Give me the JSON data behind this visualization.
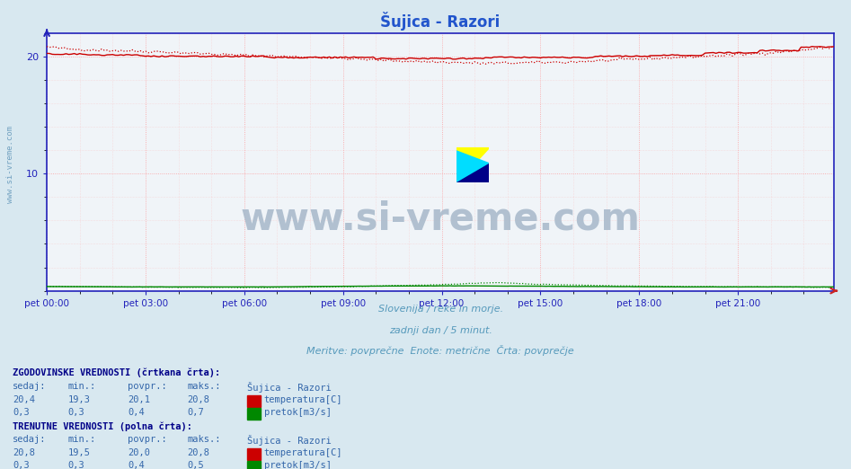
{
  "title": "Šujica - Razori",
  "title_color": "#2255cc",
  "title_fontsize": 12,
  "bg_outer": "#d8e8f0",
  "bg_plot": "#f0f4f8",
  "grid_color": "#ffaaaa",
  "grid_major_color": "#ff8888",
  "axis_color": "#2222bb",
  "ylabel_text": "www.si-vreme.com",
  "ylabel_color": "#6699bb",
  "xticklabels": [
    "pet 00:00",
    "pet 03:00",
    "pet 06:00",
    "pet 09:00",
    "pet 12:00",
    "pet 15:00",
    "pet 18:00",
    "pet 21:00"
  ],
  "xtick_positions": [
    0,
    36,
    72,
    108,
    144,
    180,
    216,
    252
  ],
  "n_points": 288,
  "ylim": [
    0,
    22
  ],
  "yticks": [
    10,
    20
  ],
  "xlabel_lines": [
    "Slovenija / reke in morje.",
    "zadnji dan / 5 minut.",
    "Meritve: povprečne  Enote: metrične  Črta: povprečje"
  ],
  "xlabel_color": "#5599bb",
  "temp_hist_color": "#cc0000",
  "temp_curr_color": "#cc0000",
  "flow_hist_color": "#008800",
  "flow_curr_color": "#008800",
  "watermark_text": "www.si-vreme.com",
  "watermark_color": "#aabbcc",
  "table_header_color": "#000088",
  "table_value_color": "#3366aa",
  "table_label_color": "#3366aa",
  "logo_colors": [
    "#ffff00",
    "#00eeff",
    "#0000aa"
  ],
  "hist_section_title": "ZGODOVINSKE VREDNOSTI (črtkana črta):",
  "curr_section_title": "TRENUTNE VREDNOSTI (polna črta):",
  "col_headers": [
    "sedaj:",
    "min.:",
    "povpr.:",
    "maks.:",
    "Šujica - Razori"
  ],
  "hist_temp_vals": [
    "20,4",
    "19,3",
    "20,1",
    "20,8"
  ],
  "hist_flow_vals": [
    "0,3",
    "0,3",
    "0,4",
    "0,7"
  ],
  "curr_temp_vals": [
    "20,8",
    "19,5",
    "20,0",
    "20,8"
  ],
  "curr_flow_vals": [
    "0,3",
    "0,3",
    "0,4",
    "0,5"
  ],
  "temp_label": "temperatura[C]",
  "flow_label": "pretok[m3/s]"
}
